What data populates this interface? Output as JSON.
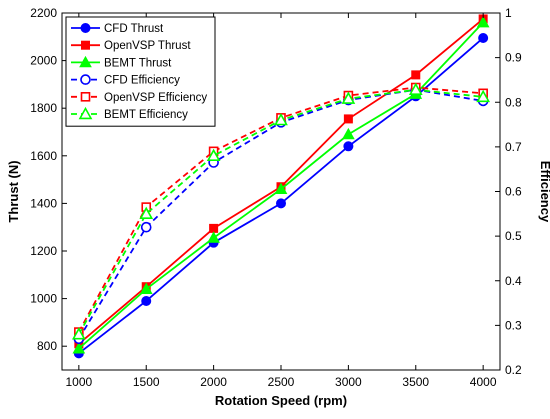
{
  "chart_data": {
    "type": "line",
    "title": "",
    "xlabel": "Rotation Speed (rpm)",
    "ylabel_left": "Thrust (N)",
    "ylabel_right": "Efficiency",
    "x": [
      1000,
      1500,
      2000,
      2500,
      3000,
      3500,
      4000
    ],
    "xlim": [
      875,
      4125
    ],
    "xticks": [
      1000,
      1500,
      2000,
      2500,
      3000,
      3500,
      4000
    ],
    "ylim_left": [
      700,
      2200
    ],
    "yticks_left": [
      800,
      1000,
      1200,
      1400,
      1600,
      1800,
      2000,
      2200
    ],
    "ylim_right": [
      0.2,
      1.0
    ],
    "yticks_right": [
      0.2,
      0.3,
      0.4,
      0.5,
      0.6,
      0.7,
      0.8,
      0.9,
      1
    ],
    "grid": false,
    "legend_position": "top-left",
    "series": [
      {
        "name": "CFD Thrust",
        "axis": "left",
        "color": "#0000ff",
        "line": "solid",
        "marker": "circle-filled",
        "values": [
          770,
          990,
          1235,
          1400,
          1640,
          1850,
          2095
        ]
      },
      {
        "name": "OpenVSP Thrust",
        "axis": "left",
        "color": "#ff0000",
        "line": "solid",
        "marker": "square-filled",
        "values": [
          810,
          1050,
          1295,
          1470,
          1755,
          1940,
          2175
        ]
      },
      {
        "name": "BEMT Thrust",
        "axis": "left",
        "color": "#00ff00",
        "line": "solid",
        "marker": "triangle-filled",
        "values": [
          790,
          1040,
          1255,
          1460,
          1690,
          1860,
          2160
        ]
      },
      {
        "name": "CFD Efficiency",
        "axis": "right",
        "color": "#0000ff",
        "line": "dashed",
        "marker": "circle-open",
        "values": [
          0.27,
          0.52,
          0.665,
          0.755,
          0.805,
          0.828,
          0.803
        ]
      },
      {
        "name": "OpenVSP Efficiency",
        "axis": "right",
        "color": "#ff0000",
        "line": "dashed",
        "marker": "square-open",
        "values": [
          0.285,
          0.565,
          0.69,
          0.765,
          0.815,
          0.833,
          0.82
        ]
      },
      {
        "name": "BEMT Efficiency",
        "axis": "right",
        "color": "#00ff00",
        "line": "dashed",
        "marker": "triangle-open",
        "values": [
          0.28,
          0.55,
          0.68,
          0.76,
          0.808,
          0.828,
          0.812
        ]
      }
    ]
  }
}
